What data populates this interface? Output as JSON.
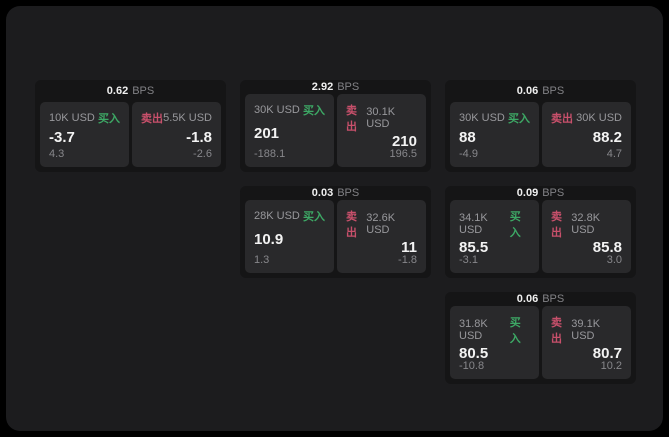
{
  "labels": {
    "bps_suffix": "BPS",
    "buy_label": "买入",
    "sell_label": "卖出"
  },
  "colors": {
    "buy_green": "#3da865",
    "sell_red": "#c8506b",
    "page_bg": "#1c1c1e",
    "card_bg": "#151516",
    "panel_bg": "#29292b"
  },
  "cards": [
    {
      "bps": "0.62",
      "buy": {
        "amount": "10K USD",
        "value": "-3.7",
        "delta": "4.3"
      },
      "sell": {
        "amount": "5.5K USD",
        "value": "-1.8",
        "delta": "-2.6"
      }
    },
    {
      "bps": "2.92",
      "buy": {
        "amount": "30K USD",
        "value": "201",
        "delta": "-188.1"
      },
      "sell": {
        "amount": "30.1K USD",
        "value": "210",
        "delta": "196.5"
      }
    },
    {
      "bps": "0.06",
      "buy": {
        "amount": "30K USD",
        "value": "88",
        "delta": "-4.9"
      },
      "sell": {
        "amount": "30K USD",
        "value": "88.2",
        "delta": "4.7"
      }
    },
    {
      "bps": "0.03",
      "buy": {
        "amount": "28K USD",
        "value": "10.9",
        "delta": "1.3"
      },
      "sell": {
        "amount": "32.6K USD",
        "value": "11",
        "delta": "-1.8"
      }
    },
    {
      "bps": "0.09",
      "buy": {
        "amount": "34.1K USD",
        "value": "85.5",
        "delta": "-3.1"
      },
      "sell": {
        "amount": "32.8K USD",
        "value": "85.8",
        "delta": "3.0"
      }
    },
    {
      "bps": "0.06",
      "buy": {
        "amount": "31.8K USD",
        "value": "80.5",
        "delta": "-10.8"
      },
      "sell": {
        "amount": "39.1K USD",
        "value": "80.7",
        "delta": "10.2"
      }
    }
  ]
}
